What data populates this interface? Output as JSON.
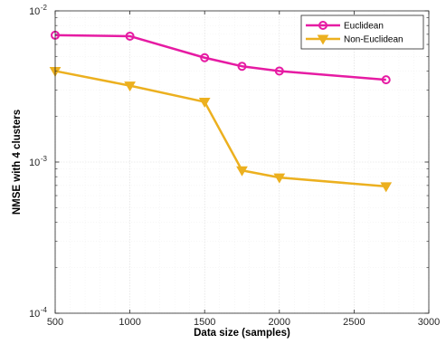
{
  "chart_data": {
    "type": "line",
    "xlabel": "Data size (samples)",
    "ylabel": "NMSE with 4 clusters",
    "xlim": [
      500,
      3000
    ],
    "ylim": [
      0.0001,
      0.01
    ],
    "y_scale": "log",
    "grid": true,
    "legend_position": "top-right",
    "x_ticks": [
      "500",
      "1000",
      "1500",
      "2000",
      "2500",
      "3000"
    ],
    "y_ticks": [
      {
        "base": "10",
        "exp": "-4"
      },
      {
        "base": "10",
        "exp": "-3"
      },
      {
        "base": "10",
        "exp": "-2"
      }
    ],
    "series": [
      {
        "name": "Euclidean",
        "color": "#e61ba3",
        "marker": "circle",
        "x": [
          500,
          1000,
          1500,
          1750,
          2000,
          2714
        ],
        "y": [
          0.0069,
          0.0068,
          0.0049,
          0.0043,
          0.004,
          0.0035
        ]
      },
      {
        "name": "Non-Euclidean",
        "color": "#ecb01f",
        "marker": "triangle-down",
        "x": [
          500,
          1000,
          1500,
          1750,
          2000,
          2714
        ],
        "y": [
          0.004,
          0.0032,
          0.0025,
          0.00088,
          0.00079,
          0.00069
        ]
      }
    ]
  }
}
